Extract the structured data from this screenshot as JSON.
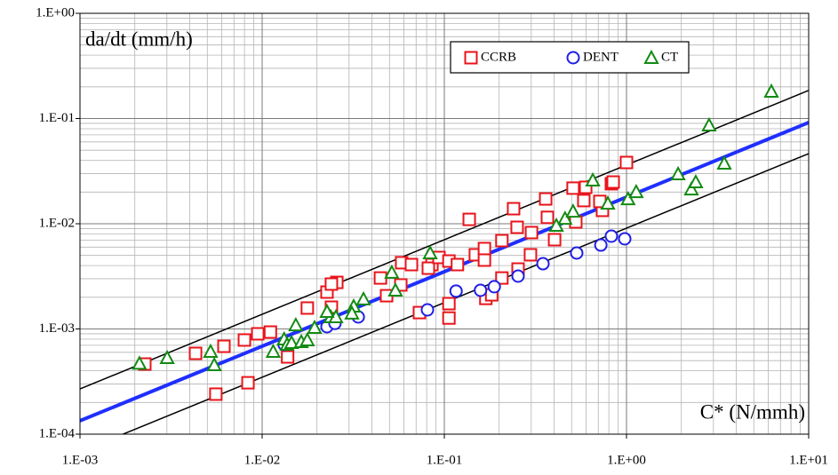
{
  "chart_data": {
    "type": "scatter",
    "x_label": "C* (N/mmh)",
    "y_label": "da/dt (mm/h)",
    "xscale": "log",
    "yscale": "log",
    "xlim": [
      0.001,
      10
    ],
    "ylim": [
      0.0001,
      1
    ],
    "xticks": [
      {
        "value": 0.001,
        "label": "1.E-03"
      },
      {
        "value": 0.01,
        "label": "1.E-02"
      },
      {
        "value": 0.1,
        "label": "1.E-01"
      },
      {
        "value": 1,
        "label": "1.E+00"
      },
      {
        "value": 10,
        "label": "1.E+01"
      }
    ],
    "yticks": [
      {
        "value": 0.0001,
        "label": "1.E-04"
      },
      {
        "value": 0.001,
        "label": "1.E-03"
      },
      {
        "value": 0.01,
        "label": "1.E-02"
      },
      {
        "value": 0.1,
        "label": "1.E-01"
      },
      {
        "value": 1,
        "label": "1.E+00"
      }
    ],
    "grid": true,
    "minor_grid": true,
    "legend": "top",
    "series": [
      {
        "name": "CCRB",
        "marker": "square",
        "color": "#e8141b",
        "x": [
          0.00227,
          0.00431,
          0.00557,
          0.00617,
          0.00799,
          0.00836,
          0.00946,
          0.0111,
          0.0138,
          0.0177,
          0.024,
          0.0227,
          0.0257,
          0.024,
          0.0446,
          0.0482,
          0.0577,
          0.0583,
          0.066,
          0.0855,
          0.0817,
          0.0935,
          0.073,
          0.106,
          0.106,
          0.106,
          0.118,
          0.137,
          0.148,
          0.166,
          0.166,
          0.169,
          0.182,
          0.207,
          0.207,
          0.24,
          0.251,
          0.254,
          0.301,
          0.297,
          0.36,
          0.368,
          0.403,
          0.509,
          0.527,
          0.583,
          0.597,
          0.738,
          0.826,
          0.845,
          1.0,
          0.714
        ],
        "values": [
          0.000464,
          0.000586,
          0.00024,
          0.000684,
          0.000785,
          0.000308,
          0.000899,
          0.000934,
          0.000542,
          0.00158,
          0.00161,
          0.00224,
          0.00277,
          0.00267,
          0.00305,
          0.00207,
          0.00262,
          0.00426,
          0.00409,
          0.00409,
          0.00378,
          0.00478,
          0.00143,
          0.00442,
          0.00174,
          0.00127,
          0.00409,
          0.011,
          0.00507,
          0.00581,
          0.00451,
          0.00195,
          0.00211,
          0.00691,
          0.00305,
          0.0139,
          0.00925,
          0.00371,
          0.00824,
          0.00507,
          0.0172,
          0.0115,
          0.00705,
          0.0218,
          0.0104,
          0.0166,
          0.0222,
          0.0134,
          0.024,
          0.0249,
          0.0382,
          0.0163
        ]
      },
      {
        "name": "DENT",
        "marker": "circle",
        "color": "#1f1fe6",
        "x": [
          0.0132,
          0.0227,
          0.0251,
          0.0337,
          0.0808,
          0.116,
          0.158,
          0.188,
          0.254,
          0.348,
          0.533,
          0.723,
          0.826,
          0.978
        ],
        "values": [
          0.000711,
          0.00105,
          0.00113,
          0.0013,
          0.00152,
          0.00229,
          0.00233,
          0.00252,
          0.00318,
          0.00417,
          0.00527,
          0.00627,
          0.00762,
          0.00719
        ]
      },
      {
        "name": "CT",
        "marker": "triangle",
        "color": "#138a13",
        "x": [
          0.00212,
          0.00301,
          0.00521,
          0.00546,
          0.0115,
          0.0132,
          0.0137,
          0.0145,
          0.0153,
          0.0164,
          0.0177,
          0.0194,
          0.0238,
          0.0254,
          0.0227,
          0.0318,
          0.0311,
          0.036,
          0.0515,
          0.0539,
          0.0836,
          0.412,
          0.46,
          0.509,
          0.653,
          0.79,
          1.02,
          1.13,
          1.92,
          2.27,
          2.4,
          2.84,
          3.44,
          6.24
        ],
        "values": [
          0.00047,
          0.000532,
          0.00061,
          0.000455,
          0.00061,
          0.0008,
          0.000711,
          0.00074,
          0.00109,
          0.000755,
          0.000785,
          0.00103,
          0.0013,
          0.0013,
          0.00146,
          0.00164,
          0.00141,
          0.00192,
          0.00344,
          0.00233,
          0.00527,
          0.00962,
          0.0112,
          0.0131,
          0.0259,
          0.0156,
          0.0172,
          0.0201,
          0.0297,
          0.0213,
          0.0249,
          0.0865,
          0.0375,
          0.181
        ]
      },
      {
        "mode": "line",
        "color": "#000000",
        "width": 1.5,
        "x": [
          0.001,
          10
        ],
        "values": [
          0.000269,
          0.185
        ]
      },
      {
        "mode": "line",
        "color": "#1f2fff",
        "width": 4,
        "x": [
          0.001,
          10
        ],
        "values": [
          0.000134,
          0.0916
        ]
      },
      {
        "mode": "line",
        "color": "#000000",
        "width": 1.5,
        "x": [
          0.001,
          10
        ],
        "values": [
          6.8e-05,
          0.0464
        ]
      }
    ]
  }
}
